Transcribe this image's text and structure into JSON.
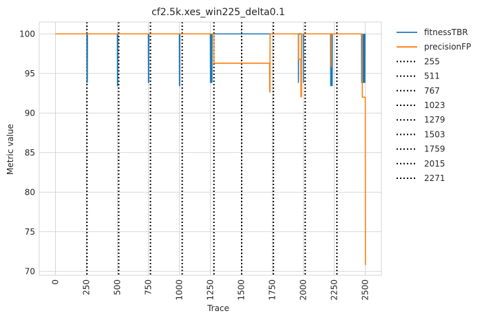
{
  "chart_data": {
    "type": "line",
    "title": "cf2.5k.xes_win225_delta0.1",
    "xlabel": "Trace",
    "ylabel": "Metric value",
    "xlim": [
      -130,
      2630
    ],
    "ylim": [
      69.5,
      101.5
    ],
    "x_ticks": [
      0,
      250,
      500,
      750,
      1000,
      1250,
      1500,
      1750,
      2000,
      2250,
      2500
    ],
    "y_ticks": [
      70,
      75,
      80,
      85,
      90,
      95,
      100
    ],
    "grid": true,
    "legend_position": "outside-right",
    "series": [
      {
        "name": "fitnessTBR",
        "color": "#1f77b4",
        "x": [
          0,
          255,
          256,
          257,
          258,
          259,
          260,
          500,
          501,
          502,
          503,
          504,
          505,
          750,
          751,
          752,
          753,
          754,
          755,
          1000,
          1001,
          1002,
          1003,
          1004,
          1005,
          1250,
          1251,
          1252,
          1253,
          1254,
          1255,
          1256,
          1257,
          1258,
          1259,
          1260,
          1261,
          1262,
          1263,
          1264,
          1265,
          1960,
          1961,
          1962,
          1963,
          2000,
          2001,
          2002,
          2003,
          2220,
          2221,
          2222,
          2223,
          2224,
          2225,
          2226,
          2227,
          2228,
          2229,
          2230,
          2231,
          2232,
          2233,
          2234,
          2235,
          2470,
          2471,
          2472,
          2473,
          2474,
          2475,
          2476,
          2477,
          2478,
          2479,
          2480,
          2481,
          2482,
          2483,
          2484,
          2485,
          2486,
          2487,
          2488,
          2489,
          2490,
          2491,
          2492,
          2493,
          2494,
          2495,
          2496,
          2497,
          2498,
          2499
        ],
        "y": [
          100,
          100,
          93.8,
          100,
          93.8,
          100,
          100,
          100,
          93.4,
          100,
          93.4,
          100,
          100,
          100,
          93.8,
          100,
          93.8,
          100,
          100,
          100,
          93.4,
          100,
          93.4,
          100,
          100,
          100,
          93.8,
          100,
          93.8,
          100,
          93.8,
          100,
          93.8,
          100,
          93.8,
          100,
          93.8,
          100,
          93.8,
          100,
          100,
          100,
          93.8,
          100,
          100,
          100,
          93.8,
          100,
          100,
          100,
          93.4,
          100,
          93.4,
          100,
          93.4,
          100,
          93.4,
          100,
          93.4,
          100,
          93.4,
          100,
          93.4,
          100,
          100,
          100,
          93.8,
          100,
          93.8,
          100,
          93.8,
          100,
          93.8,
          100,
          93.8,
          100,
          93.8,
          100,
          93.8,
          100,
          93.8,
          100,
          93.8,
          100,
          93.8,
          100,
          93.8,
          100,
          93.8,
          100,
          93.8,
          100,
          93.8,
          100,
          100
        ]
      },
      {
        "name": "precisionFP",
        "color": "#ff7f0e",
        "x": [
          0,
          1278,
          1279,
          1728,
          1729,
          1730,
          1731,
          1732,
          1733,
          1960,
          1961,
          1980,
          1981,
          1982,
          1983,
          1984,
          1985,
          1986,
          1987,
          2225,
          2226,
          2227,
          2228,
          2475,
          2476,
          2500,
          2501
        ],
        "y": [
          100,
          100,
          96.3,
          96.3,
          92.6,
          96.3,
          92.6,
          100,
          100,
          100,
          96.8,
          96.8,
          92,
          96.8,
          92,
          100,
          92,
          100,
          100,
          100,
          95.8,
          100,
          100,
          100,
          92,
          92,
          70.8
        ]
      },
      {
        "name": "255",
        "color": "#000000",
        "style": "dotted",
        "vline": 255
      },
      {
        "name": "511",
        "color": "#000000",
        "style": "dotted",
        "vline": 511
      },
      {
        "name": "767",
        "color": "#000000",
        "style": "dotted",
        "vline": 767
      },
      {
        "name": "1023",
        "color": "#000000",
        "style": "dotted",
        "vline": 1023
      },
      {
        "name": "1279",
        "color": "#000000",
        "style": "dotted",
        "vline": 1279
      },
      {
        "name": "1503",
        "color": "#000000",
        "style": "dotted",
        "vline": 1503
      },
      {
        "name": "1759",
        "color": "#000000",
        "style": "dotted",
        "vline": 1759
      },
      {
        "name": "2015",
        "color": "#000000",
        "style": "dotted",
        "vline": 2015
      },
      {
        "name": "2271",
        "color": "#000000",
        "style": "dotted",
        "vline": 2271
      }
    ]
  }
}
